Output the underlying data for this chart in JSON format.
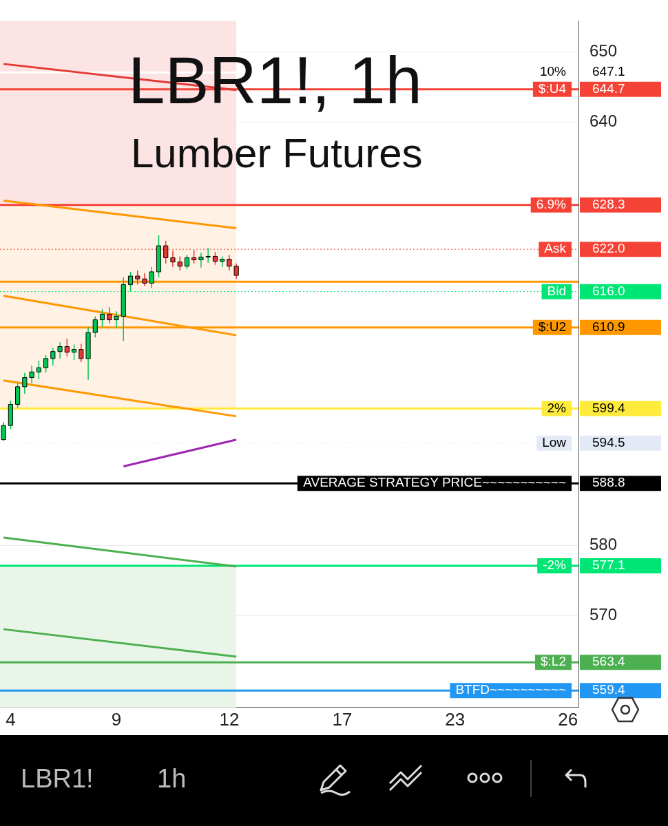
{
  "chart_data": {
    "type": "candlestick",
    "title": "LBR1!, 1h",
    "subtitle": "Lumber Futures",
    "annotations": [
      "LBR1!",
      "1h",
      {
        "text": "10%",
        "y": 647.1
      },
      {
        "text": "$:U4",
        "y": 644.7
      },
      {
        "text": "6.9%",
        "y": 628.3
      },
      {
        "text": "Ask",
        "y": 622.0
      },
      {
        "text": "Bid",
        "y": 616.0
      },
      {
        "text": "$:U2",
        "y": 610.9
      },
      {
        "text": "2%",
        "y": 599.4
      },
      {
        "text": "Low",
        "y": 594.5
      },
      {
        "text": "AVERAGE STRATEGY PRICE~~~~~~~~~~~",
        "y": 588.8
      },
      {
        "text": "-2%",
        "y": 577.1
      },
      {
        "text": "$:L2",
        "y": 563.4
      },
      {
        "text": "BTFD~~~~~~~~~~",
        "y": 559.4
      }
    ],
    "categories": [
      null,
      "4",
      null,
      null,
      null,
      null,
      null,
      null,
      null,
      null,
      null,
      null,
      null,
      null,
      null,
      null,
      "9",
      null,
      null,
      null,
      null,
      null,
      null,
      null,
      null,
      null,
      null,
      null,
      null,
      null,
      null,
      null,
      "12",
      null,
      null,
      null,
      null,
      null,
      null,
      null,
      null,
      null,
      null,
      null,
      null,
      null,
      null,
      null,
      "17",
      null,
      null,
      null,
      null,
      null,
      null,
      null,
      null,
      null,
      null,
      null,
      null,
      null,
      null,
      null,
      "23",
      null,
      null,
      null,
      null,
      null,
      null,
      null,
      null,
      null,
      null,
      null,
      null,
      null,
      null,
      null,
      "26",
      null
    ],
    "ohlc": [
      [
        595.0,
        597.5,
        594.8,
        597.0
      ],
      [
        597.0,
        600.5,
        596.5,
        600.0
      ],
      [
        600.0,
        603.0,
        599.5,
        602.5
      ],
      [
        602.5,
        604.5,
        601.5,
        603.8
      ],
      [
        603.8,
        605.5,
        603.0,
        604.6
      ],
      [
        604.6,
        606.2,
        603.6,
        605.2
      ],
      [
        605.2,
        607.0,
        604.5,
        606.5
      ],
      [
        606.5,
        608.0,
        605.5,
        607.5
      ],
      [
        607.5,
        608.8,
        606.5,
        608.2
      ],
      [
        608.2,
        609.3,
        606.8,
        607.4
      ],
      [
        607.4,
        608.5,
        606.3,
        607.8
      ],
      [
        607.8,
        608.6,
        606.0,
        606.5
      ],
      [
        606.5,
        611.0,
        603.5,
        610.2
      ],
      [
        610.2,
        612.5,
        609.5,
        612.0
      ],
      [
        612.0,
        613.5,
        611.0,
        612.8
      ],
      [
        612.8,
        613.8,
        611.5,
        612.0
      ],
      [
        612.0,
        613.2,
        610.8,
        612.5
      ],
      [
        612.5,
        618.0,
        609.0,
        617.0
      ],
      [
        617.0,
        618.8,
        616.0,
        618.2
      ],
      [
        618.2,
        619.0,
        617.0,
        617.8
      ],
      [
        617.8,
        618.6,
        616.8,
        617.2
      ],
      [
        617.2,
        619.5,
        616.5,
        618.8
      ],
      [
        618.8,
        624.0,
        618.0,
        622.5
      ],
      [
        622.5,
        623.2,
        620.0,
        620.8
      ],
      [
        620.8,
        621.8,
        619.5,
        620.2
      ],
      [
        620.2,
        621.0,
        619.0,
        619.6
      ],
      [
        619.6,
        621.2,
        619.2,
        620.8
      ],
      [
        620.8,
        621.9,
        620.0,
        620.5
      ],
      [
        620.5,
        621.5,
        619.4,
        620.9
      ],
      [
        620.9,
        622.2,
        620.1,
        621.0
      ],
      [
        621.0,
        621.6,
        619.8,
        620.3
      ],
      [
        620.3,
        621.0,
        619.5,
        620.6
      ],
      [
        620.6,
        621.2,
        619.0,
        619.6
      ],
      [
        619.6,
        620.0,
        617.8,
        618.3
      ],
      null,
      null,
      null,
      null,
      null,
      null,
      null,
      null,
      null,
      null,
      null,
      null,
      null,
      null,
      null,
      null,
      null,
      null,
      null,
      null,
      null,
      null,
      null,
      null,
      null,
      null,
      null,
      null,
      null,
      null,
      null,
      null,
      null,
      null,
      null,
      null,
      null,
      null,
      null,
      null,
      null,
      null,
      null,
      null,
      null,
      null,
      null,
      null
    ],
    "series": [
      {
        "type": "line",
        "values": [
          648.3,
          null,
          null,
          null,
          null,
          null,
          null,
          null,
          null,
          null,
          null,
          null,
          null,
          null,
          null,
          null,
          null,
          null,
          null,
          null,
          null,
          null,
          null,
          null,
          null,
          null,
          null,
          null,
          null,
          null,
          null,
          null,
          null,
          644.6,
          null,
          null,
          null,
          null,
          null,
          null,
          null,
          null,
          null,
          null,
          null,
          null,
          null,
          null,
          null,
          null,
          null,
          null,
          null,
          null,
          null,
          null,
          null,
          null,
          null,
          null,
          null,
          null,
          null,
          null,
          null,
          null,
          null,
          null,
          null,
          null,
          null,
          null,
          null,
          null,
          null,
          null,
          null,
          null,
          null,
          null,
          null,
          null
        ],
        "color": "#e53935"
      },
      {
        "type": "line",
        "values": [
          628.9,
          null,
          null,
          null,
          null,
          null,
          null,
          null,
          null,
          null,
          null,
          null,
          null,
          null,
          null,
          null,
          null,
          null,
          null,
          null,
          null,
          null,
          null,
          null,
          null,
          null,
          null,
          null,
          null,
          null,
          null,
          null,
          null,
          625.0,
          null,
          null,
          null,
          null,
          null,
          null,
          null,
          null,
          null,
          null,
          null,
          null,
          null,
          null,
          null,
          null,
          null,
          null,
          null,
          null,
          null,
          null,
          null,
          null,
          null,
          null,
          null,
          null,
          null,
          null,
          null,
          null,
          null,
          null,
          null,
          null,
          null,
          null,
          null,
          null,
          null,
          null,
          null,
          null,
          null,
          null,
          null,
          null
        ],
        "color": "#ff9800"
      },
      {
        "type": "line",
        "values": [
          615.4,
          null,
          null,
          null,
          null,
          null,
          null,
          null,
          null,
          null,
          null,
          null,
          null,
          null,
          null,
          null,
          null,
          null,
          null,
          null,
          null,
          null,
          null,
          null,
          null,
          null,
          null,
          null,
          null,
          null,
          null,
          null,
          null,
          609.8,
          null,
          null,
          null,
          null,
          null,
          null,
          null,
          null,
          null,
          null,
          null,
          null,
          null,
          null,
          null,
          null,
          null,
          null,
          null,
          null,
          null,
          null,
          null,
          null,
          null,
          null,
          null,
          null,
          null,
          null,
          null,
          null,
          null,
          null,
          null,
          null,
          null,
          null,
          null,
          null,
          null,
          null,
          null,
          null,
          null,
          null,
          null,
          null
        ],
        "color": "#ff9800"
      },
      {
        "type": "line",
        "values": [
          603.4,
          null,
          null,
          null,
          null,
          null,
          null,
          null,
          null,
          null,
          null,
          null,
          null,
          null,
          null,
          null,
          null,
          null,
          null,
          null,
          null,
          null,
          null,
          null,
          null,
          null,
          null,
          null,
          null,
          null,
          null,
          null,
          null,
          598.3,
          null,
          null,
          null,
          null,
          null,
          null,
          null,
          null,
          null,
          null,
          null,
          null,
          null,
          null,
          null,
          null,
          null,
          null,
          null,
          null,
          null,
          null,
          null,
          null,
          null,
          null,
          null,
          null,
          null,
          null,
          null,
          null,
          null,
          null,
          null,
          null,
          null,
          null,
          null,
          null,
          null,
          null,
          null,
          null,
          null,
          null,
          null,
          null
        ],
        "color": "#ff9800"
      },
      {
        "type": "line",
        "values": [
          null,
          null,
          null,
          null,
          null,
          null,
          null,
          null,
          null,
          null,
          null,
          null,
          null,
          null,
          null,
          null,
          null,
          591.2,
          null,
          null,
          null,
          null,
          null,
          null,
          null,
          null,
          null,
          null,
          null,
          null,
          null,
          null,
          null,
          595.0,
          null,
          null,
          null,
          null,
          null,
          null,
          null,
          null,
          null,
          null,
          null,
          null,
          null,
          null,
          null,
          null,
          null,
          null,
          null,
          null,
          null,
          null,
          null,
          null,
          null,
          null,
          null,
          null,
          null,
          null,
          null,
          null,
          null,
          null,
          null,
          null,
          null,
          null,
          null,
          null,
          null,
          null,
          null,
          null,
          null,
          null,
          null,
          null
        ],
        "color": "#9c27b0"
      },
      {
        "type": "line",
        "values": [
          581.1,
          null,
          null,
          null,
          null,
          null,
          null,
          null,
          null,
          null,
          null,
          null,
          null,
          null,
          null,
          null,
          null,
          null,
          null,
          null,
          null,
          null,
          null,
          null,
          null,
          null,
          null,
          null,
          null,
          null,
          null,
          null,
          null,
          577.0,
          null,
          null,
          null,
          null,
          null,
          null,
          null,
          null,
          null,
          null,
          null,
          null,
          null,
          null,
          null,
          null,
          null,
          null,
          null,
          null,
          null,
          null,
          null,
          null,
          null,
          null,
          null,
          null,
          null,
          null,
          null,
          null,
          null,
          null,
          null,
          null,
          null,
          null,
          null,
          null,
          null,
          null,
          null,
          null,
          null,
          null,
          null,
          null
        ],
        "color": "#4caf50"
      },
      {
        "type": "line",
        "values": [
          568.1,
          null,
          null,
          null,
          null,
          null,
          null,
          null,
          null,
          null,
          null,
          null,
          null,
          null,
          null,
          null,
          null,
          null,
          null,
          null,
          null,
          null,
          null,
          null,
          null,
          null,
          null,
          null,
          null,
          null,
          null,
          null,
          null,
          564.2,
          null,
          null,
          null,
          null,
          null,
          null,
          null,
          null,
          null,
          null,
          null,
          null,
          null,
          null,
          null,
          null,
          null,
          null,
          null,
          null,
          null,
          null,
          null,
          null,
          null,
          null,
          null,
          null,
          null,
          null,
          null,
          null,
          null,
          null,
          null,
          null,
          null,
          null,
          null,
          null,
          null,
          null,
          null,
          null,
          null,
          null,
          null,
          null
        ],
        "color": "#4caf50"
      }
    ],
    "ylim": [
      557,
      654.4
    ],
    "yticks": [
      570,
      580,
      640,
      650
    ],
    "grid": "y",
    "bands": [
      {
        "axis": "y",
        "from": 628.3,
        "to": 654.4,
        "color": "#fde4e4"
      },
      {
        "axis": "y",
        "from": 599.4,
        "to": 628.3,
        "color": "#fff1e3"
      },
      {
        "axis": "y",
        "from": 557,
        "to": 577.1,
        "color": "#e9f5e9"
      }
    ],
    "ref_lines": [
      {
        "axis": "y",
        "value": 647.1,
        "label": "647.1",
        "color": "#ffffff"
      },
      {
        "axis": "y",
        "value": 644.7,
        "label": "644.7",
        "color": "#f44336"
      },
      {
        "axis": "y",
        "value": 628.3,
        "label": "628.3",
        "color": "#f44336"
      },
      {
        "axis": "y",
        "value": 622.0,
        "label": "622.0",
        "color": "#f44336",
        "line_style": "dotted"
      },
      {
        "axis": "y",
        "value": 617.4,
        "color": "#ff9800"
      },
      {
        "axis": "y",
        "value": 616.0,
        "label": "616.0",
        "color": "#00e676",
        "line_style": "dotted"
      },
      {
        "axis": "y",
        "value": 610.9,
        "label": "610.9",
        "color": "#ff9800"
      },
      {
        "axis": "y",
        "value": 599.4,
        "label": "599.4",
        "color": "#ffeb3b"
      },
      {
        "axis": "y",
        "value": 594.5,
        "label": "594.5",
        "color": "#e3eaf6",
        "line_style": "dotted"
      },
      {
        "axis": "y",
        "value": 588.8,
        "label": "588.8",
        "color": "#000000"
      },
      {
        "axis": "y",
        "value": 577.1,
        "label": "577.1",
        "color": "#00e676"
      },
      {
        "axis": "y",
        "value": 563.4,
        "label": "563.4",
        "color": "#4caf50"
      },
      {
        "axis": "y",
        "value": 559.4,
        "label": "559.4",
        "color": "#2196f3"
      }
    ]
  }
}
